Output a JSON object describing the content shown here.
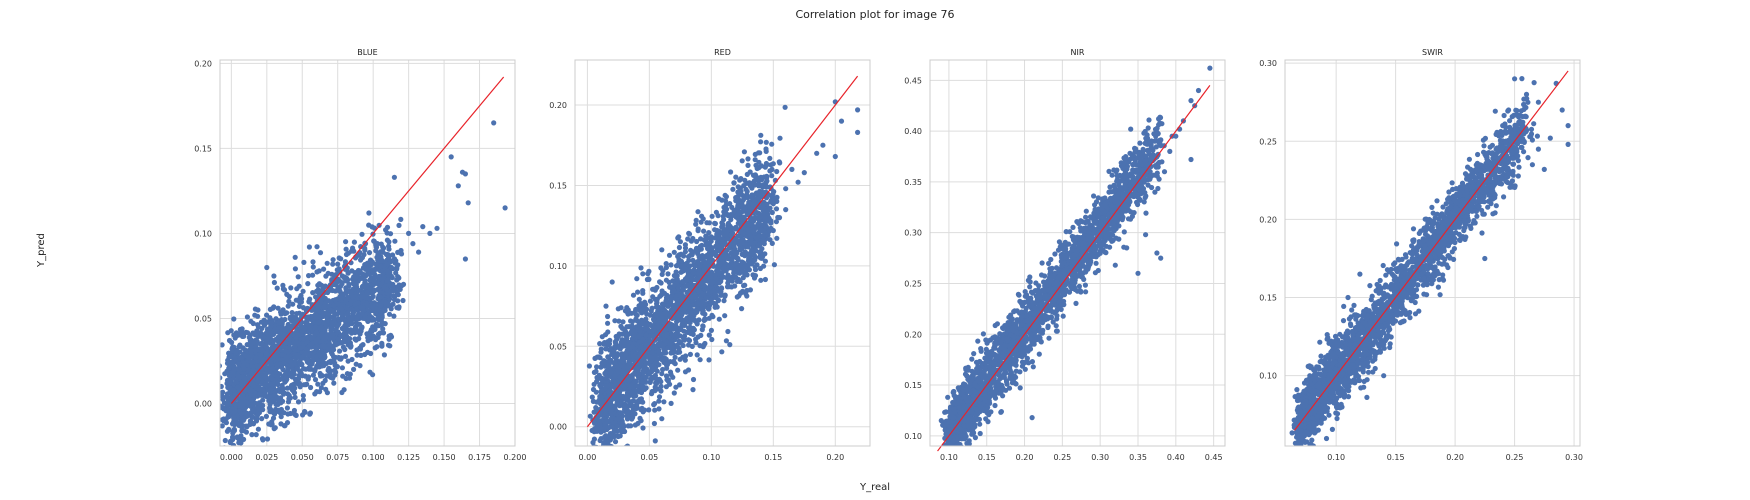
{
  "figure": {
    "title": "Correlation plot for image 76",
    "xlabel": "Y_real",
    "ylabel": "Y_pred"
  },
  "colors": {
    "points": "#4c72b0",
    "fit_line": "#e8232a",
    "grid": "#dddddd",
    "frame": "#cccccc"
  },
  "chart_data": [
    {
      "type": "scatter",
      "title": "BLUE",
      "xlim": [
        -0.008,
        0.2
      ],
      "ylim": [
        -0.025,
        0.202
      ],
      "xticks": [
        0.0,
        0.025,
        0.05,
        0.075,
        0.1,
        0.125,
        0.15,
        0.175,
        0.2
      ],
      "xtick_labels": [
        "0.000",
        "0.025",
        "0.050",
        "0.075",
        "0.100",
        "0.125",
        "0.150",
        "0.175",
        "0.200"
      ],
      "yticks": [
        0.0,
        0.05,
        0.1,
        0.15,
        0.2
      ],
      "ytick_labels": [
        "0.00",
        "0.05",
        "0.10",
        "0.15",
        "0.20"
      ],
      "identity_line": [
        0.0,
        0.192
      ],
      "cloud": {
        "x_min": 0.0,
        "x_max": 0.115,
        "slope": 0.58,
        "intercept": 0.006,
        "spread": 0.016
      },
      "points": [
        [
          0.155,
          0.145
        ],
        [
          0.16,
          0.128
        ],
        [
          0.163,
          0.136
        ],
        [
          0.165,
          0.135
        ],
        [
          0.167,
          0.118
        ],
        [
          0.165,
          0.085
        ],
        [
          0.185,
          0.165
        ],
        [
          0.193,
          0.115
        ],
        [
          0.115,
          0.133
        ],
        [
          0.097,
          0.112
        ],
        [
          0.12,
          0.088
        ],
        [
          0.125,
          0.1
        ],
        [
          0.135,
          0.104
        ],
        [
          0.14,
          0.1
        ],
        [
          0.145,
          0.103
        ],
        [
          0.128,
          0.094
        ],
        [
          0.132,
          0.089
        ],
        [
          0.11,
          0.082
        ],
        [
          0.103,
          0.094
        ],
        [
          0.107,
          0.078
        ],
        [
          0.112,
          0.066
        ],
        [
          0.118,
          0.074
        ],
        [
          0.045,
          0.086
        ],
        [
          0.055,
          0.092
        ],
        [
          0.075,
          0.082
        ],
        [
          0.085,
          0.078
        ],
        [
          0.07,
          0.068
        ],
        [
          0.03,
          0.075
        ],
        [
          0.025,
          0.08
        ],
        [
          0.065,
          0.062
        ],
        [
          0.07,
          0.055
        ],
        [
          0.1,
          0.063
        ],
        [
          0.035,
          -0.012
        ],
        [
          0.018,
          -0.009
        ],
        [
          0.008,
          -0.013
        ]
      ]
    },
    {
      "type": "scatter",
      "title": "RED",
      "xlim": [
        -0.01,
        0.228
      ],
      "ylim": [
        -0.012,
        0.228
      ],
      "xticks": [
        0.0,
        0.05,
        0.1,
        0.15,
        0.2
      ],
      "xtick_labels": [
        "0.00",
        "0.05",
        "0.10",
        "0.15",
        "0.20"
      ],
      "yticks": [
        0.0,
        0.05,
        0.1,
        0.15,
        0.2
      ],
      "ytick_labels": [
        "0.00",
        "0.05",
        "0.10",
        "0.15",
        "0.20"
      ],
      "identity_line": [
        0.0,
        0.218
      ],
      "cloud": {
        "x_min": 0.01,
        "x_max": 0.15,
        "slope": 0.92,
        "intercept": 0.004,
        "spread": 0.018
      },
      "points": [
        [
          0.2,
          0.202
        ],
        [
          0.205,
          0.19
        ],
        [
          0.218,
          0.197
        ],
        [
          0.218,
          0.183
        ],
        [
          0.2,
          0.168
        ],
        [
          0.19,
          0.175
        ],
        [
          0.185,
          0.17
        ],
        [
          0.175,
          0.158
        ],
        [
          0.17,
          0.152
        ],
        [
          0.16,
          0.148
        ],
        [
          0.155,
          0.13
        ],
        [
          0.165,
          0.16
        ],
        [
          0.14,
          0.155
        ],
        [
          0.135,
          0.14
        ],
        [
          0.112,
          0.138
        ],
        [
          0.1,
          0.118
        ],
        [
          0.122,
          0.129
        ],
        [
          0.06,
          0.11
        ],
        [
          0.075,
          0.115
        ],
        [
          0.085,
          0.117
        ],
        [
          0.16,
          0.135
        ],
        [
          0.15,
          0.122
        ],
        [
          0.02,
          0.09
        ],
        [
          0.015,
          0.075
        ],
        [
          0.03,
          -0.003
        ],
        [
          0.06,
          0.005
        ]
      ]
    },
    {
      "type": "scatter",
      "title": "NIR",
      "xlim": [
        0.075,
        0.465
      ],
      "ylim": [
        0.09,
        0.47
      ],
      "xticks": [
        0.1,
        0.15,
        0.2,
        0.25,
        0.3,
        0.35,
        0.4,
        0.45
      ],
      "xtick_labels": [
        "0.10",
        "0.15",
        "0.20",
        "0.25",
        "0.30",
        "0.35",
        "0.40",
        "0.45"
      ],
      "yticks": [
        0.1,
        0.15,
        0.2,
        0.25,
        0.3,
        0.35,
        0.4,
        0.45
      ],
      "ytick_labels": [
        "0.10",
        "0.15",
        "0.20",
        "0.25",
        "0.30",
        "0.35",
        "0.40",
        "0.45"
      ],
      "identity_line": [
        0.085,
        0.445
      ],
      "cloud": {
        "x_min": 0.1,
        "x_max": 0.38,
        "slope": 1.02,
        "intercept": 0.0,
        "spread": 0.016
      },
      "points": [
        [
          0.445,
          0.462
        ],
        [
          0.43,
          0.44
        ],
        [
          0.425,
          0.425
        ],
        [
          0.42,
          0.43
        ],
        [
          0.41,
          0.41
        ],
        [
          0.405,
          0.402
        ],
        [
          0.4,
          0.395
        ],
        [
          0.395,
          0.395
        ],
        [
          0.392,
          0.38
        ],
        [
          0.42,
          0.372
        ],
        [
          0.385,
          0.36
        ],
        [
          0.36,
          0.298
        ],
        [
          0.375,
          0.28
        ],
        [
          0.335,
          0.285
        ],
        [
          0.32,
          0.268
        ],
        [
          0.35,
          0.26
        ],
        [
          0.38,
          0.275
        ],
        [
          0.21,
          0.118
        ],
        [
          0.09,
          0.115
        ],
        [
          0.1,
          0.102
        ],
        [
          0.12,
          0.11
        ]
      ]
    },
    {
      "type": "scatter",
      "title": "SWIR",
      "xlim": [
        0.057,
        0.305
      ],
      "ylim": [
        0.055,
        0.302
      ],
      "xticks": [
        0.1,
        0.15,
        0.2,
        0.25,
        0.3
      ],
      "xtick_labels": [
        "0.10",
        "0.15",
        "0.20",
        "0.25",
        "0.30"
      ],
      "yticks": [
        0.1,
        0.15,
        0.2,
        0.25,
        0.3
      ],
      "ytick_labels": [
        "0.10",
        "0.15",
        "0.20",
        "0.25",
        "0.30"
      ],
      "identity_line": [
        0.065,
        0.295
      ],
      "cloud": {
        "x_min": 0.07,
        "x_max": 0.26,
        "slope": 1.0,
        "intercept": 0.0,
        "spread": 0.011
      },
      "points": [
        [
          0.25,
          0.29
        ],
        [
          0.26,
          0.28
        ],
        [
          0.27,
          0.275
        ],
        [
          0.285,
          0.287
        ],
        [
          0.29,
          0.27
        ],
        [
          0.295,
          0.26
        ],
        [
          0.295,
          0.248
        ],
        [
          0.28,
          0.252
        ],
        [
          0.27,
          0.245
        ],
        [
          0.275,
          0.232
        ],
        [
          0.265,
          0.235
        ],
        [
          0.245,
          0.27
        ],
        [
          0.24,
          0.26
        ],
        [
          0.225,
          0.175
        ],
        [
          0.14,
          0.12
        ],
        [
          0.145,
          0.118
        ],
        [
          0.14,
          0.1
        ],
        [
          0.13,
          0.115
        ],
        [
          0.12,
          0.165
        ],
        [
          0.11,
          0.15
        ],
        [
          0.115,
          0.145
        ]
      ]
    }
  ]
}
